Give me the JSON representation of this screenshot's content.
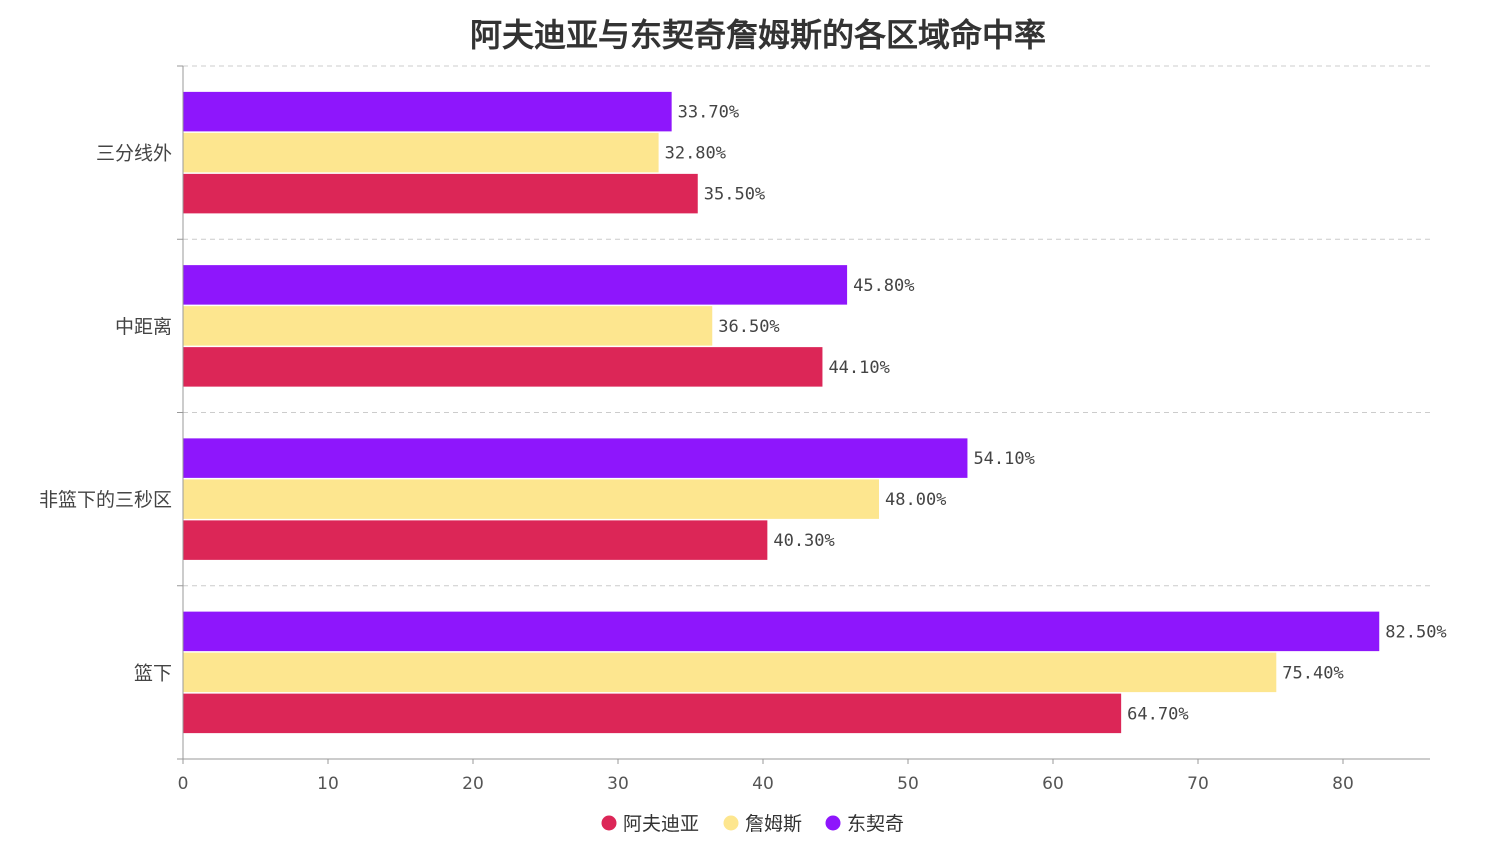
{
  "chart_data": {
    "type": "bar",
    "orientation": "horizontal",
    "title": "阿夫迪亚与东契奇詹姆斯的各区域命中率",
    "categories": [
      "三分线外",
      "中距离",
      "非篮下的三秒区",
      "篮下"
    ],
    "series": [
      {
        "name": "东契奇",
        "color": "#8e16fc",
        "values": [
          33.7,
          45.8,
          54.1,
          82.5
        ],
        "labels": [
          "33.70%",
          "45.80%",
          "54.10%",
          "82.50%"
        ]
      },
      {
        "name": "詹姆斯",
        "color": "#fde68f",
        "values": [
          32.8,
          36.5,
          48.0,
          75.4
        ],
        "labels": [
          "32.80%",
          "36.50%",
          "48.00%",
          "75.40%"
        ]
      },
      {
        "name": "阿夫迪亚",
        "color": "#dc2657",
        "values": [
          35.5,
          44.1,
          40.3,
          64.7
        ],
        "labels": [
          "35.50%",
          "44.10%",
          "40.30%",
          "64.70%"
        ]
      }
    ],
    "legend": [
      "阿夫迪亚",
      "詹姆斯",
      "东契奇"
    ],
    "x_ticks": [
      "0",
      "10",
      "20",
      "30",
      "40",
      "50",
      "60",
      "70",
      "80"
    ],
    "xlim": [
      0,
      86
    ],
    "grid": "horizontal-dashed",
    "legend_position": "bottom"
  }
}
